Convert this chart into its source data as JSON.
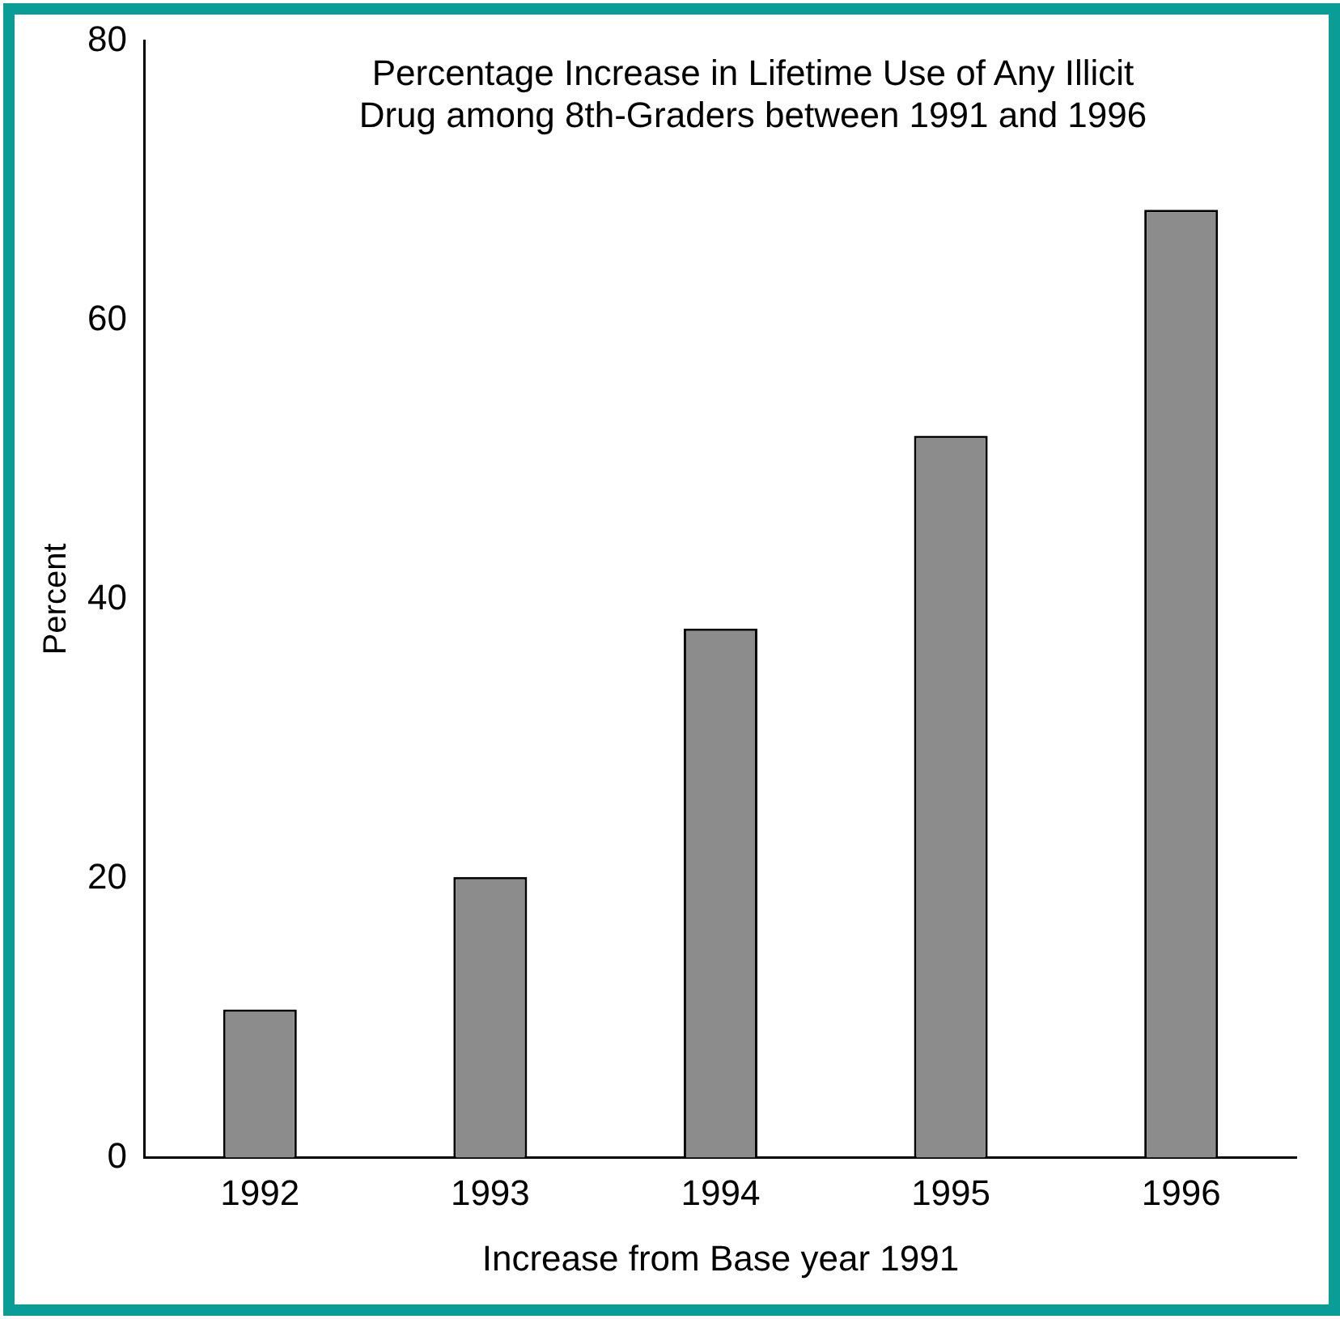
{
  "chart_data": {
    "type": "bar",
    "title": "Percentage Increase in Lifetime Use of Any Illicit Drug among 8th-Graders between 1991 and 1996",
    "xlabel": "Increase from Base year 1991",
    "ylabel": "Percent",
    "categories": [
      "1992",
      "1993",
      "1994",
      "1995",
      "1996"
    ],
    "values": [
      10.6,
      20.1,
      37.9,
      51.7,
      67.9
    ],
    "color": "#8c8c8c",
    "ylim": [
      0,
      80
    ],
    "yticks": [
      0,
      20,
      40,
      60,
      80
    ],
    "grid": false,
    "legend": false
  }
}
